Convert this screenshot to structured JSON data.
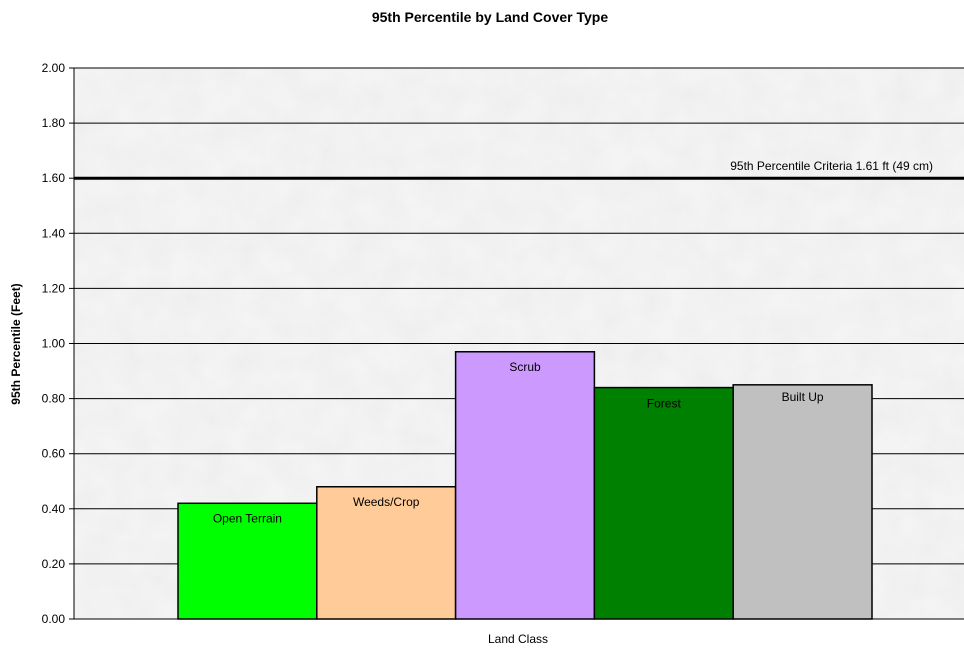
{
  "chart_data": {
    "type": "bar",
    "title": "95th Percentile by Land Cover Type",
    "xlabel": "Land Class",
    "ylabel": "95th Percentile (Feet)",
    "ylim": [
      0,
      2
    ],
    "yticks": [
      "0.00",
      "0.20",
      "0.40",
      "0.60",
      "0.80",
      "1.00",
      "1.20",
      "1.40",
      "1.60",
      "1.80",
      "2.00"
    ],
    "grid": true,
    "categories": [
      "Open Terrain",
      "Weeds/Crop",
      "Scrub",
      "Forest",
      "Built Up"
    ],
    "values": [
      0.42,
      0.48,
      0.97,
      0.84,
      0.85
    ],
    "colors": [
      "#00ff00",
      "#ffcc99",
      "#cc99ff",
      "#008000",
      "#c0c0c0"
    ],
    "reference_line": {
      "value": 1.6,
      "label": "95th Percentile Criteria 1.61 ft (49 cm)"
    }
  }
}
